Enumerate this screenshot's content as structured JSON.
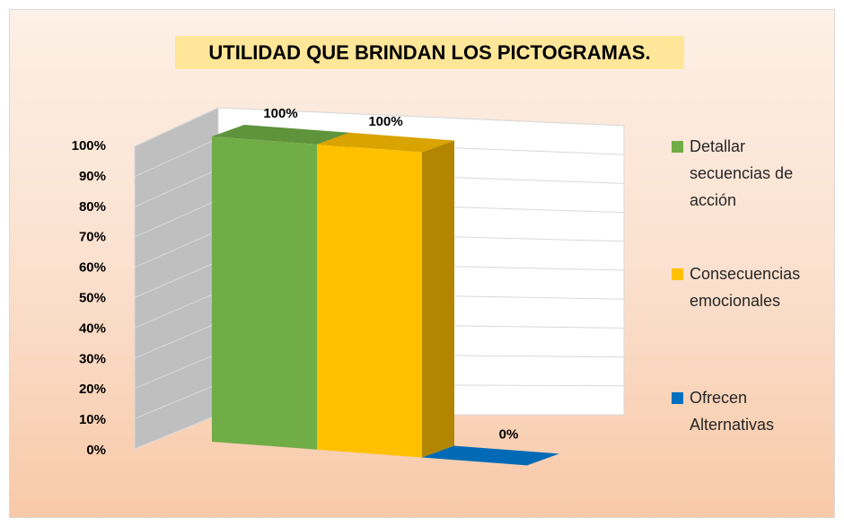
{
  "chart_data": {
    "type": "bar",
    "title": "UTILIDAD QUE BRINDAN LOS PICTOGRAMAS.",
    "series": [
      {
        "name": "Detallar secuencias de acción",
        "color": "#70ad47",
        "values": [
          100
        ],
        "value_labels": [
          "100%"
        ]
      },
      {
        "name": "Consecuencias emocionales",
        "color": "#ffc000",
        "values": [
          100
        ],
        "value_labels": [
          "100%"
        ]
      },
      {
        "name": "Ofrecen Alternativas",
        "color": "#0070c0",
        "values": [
          0
        ],
        "value_labels": [
          "0%"
        ]
      }
    ],
    "ylim": [
      0,
      100
    ],
    "yticks": [
      {
        "value": 0,
        "label": "0%"
      },
      {
        "value": 10,
        "label": "10%"
      },
      {
        "value": 20,
        "label": "20%"
      },
      {
        "value": 30,
        "label": "30%"
      },
      {
        "value": 40,
        "label": "40%"
      },
      {
        "value": 50,
        "label": "50%"
      },
      {
        "value": 60,
        "label": "60%"
      },
      {
        "value": 70,
        "label": "70%"
      },
      {
        "value": 80,
        "label": "80%"
      },
      {
        "value": 90,
        "label": "90%"
      },
      {
        "value": 100,
        "label": "100%"
      }
    ],
    "grid": true,
    "legend": "right"
  }
}
